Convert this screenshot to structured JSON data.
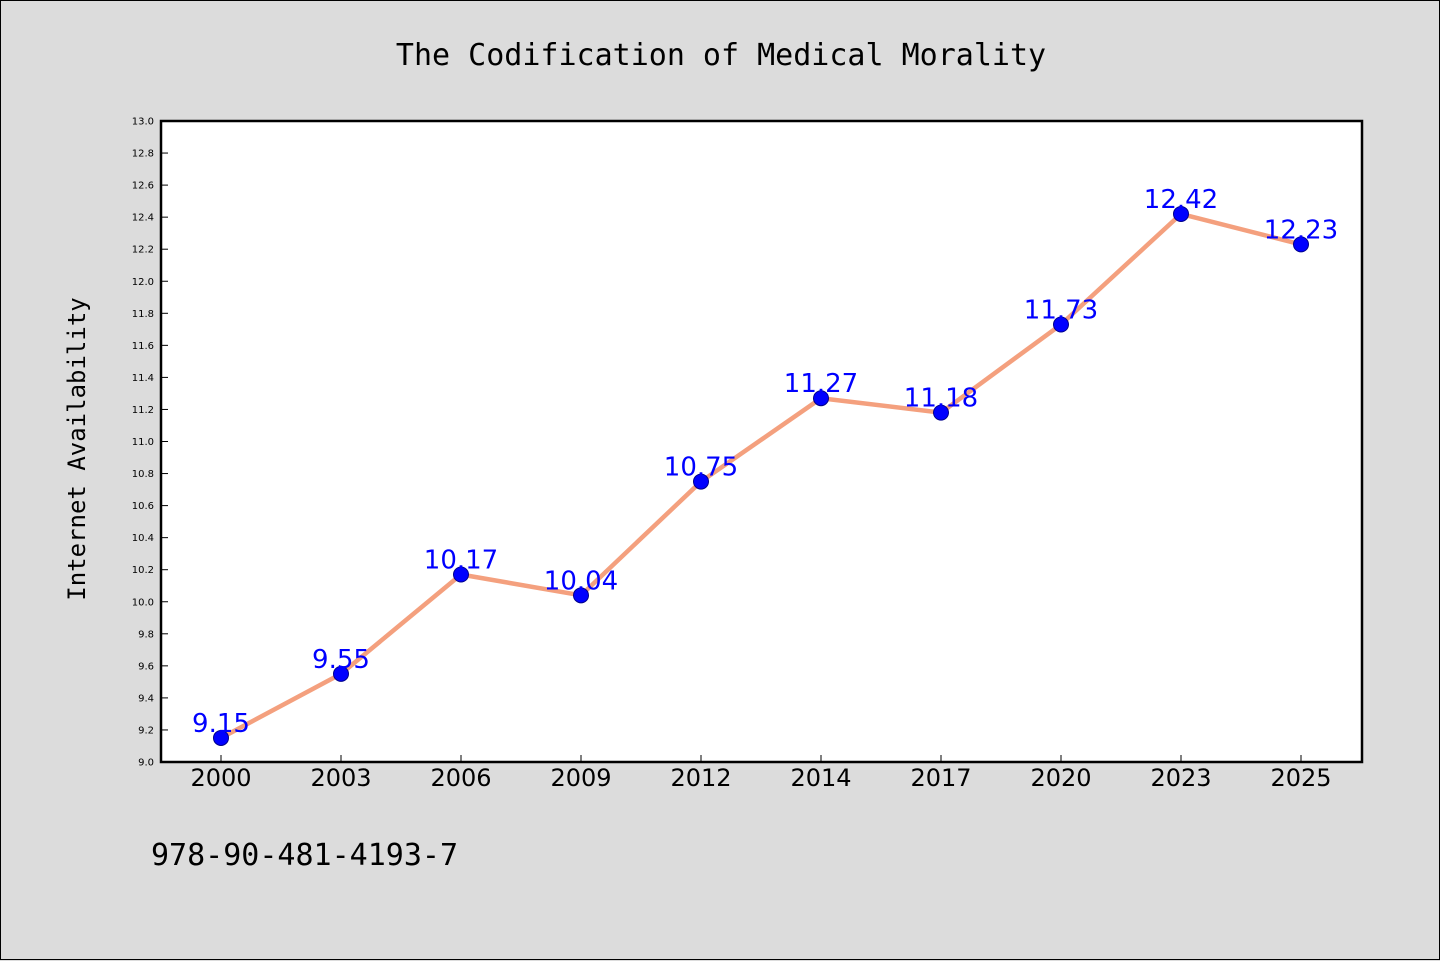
{
  "chart_data": {
    "type": "line",
    "title": "The Codification of Medical Morality",
    "xlabel": "",
    "ylabel": "Internet Availability",
    "categories": [
      "2000",
      "2003",
      "2006",
      "2009",
      "2012",
      "2014",
      "2017",
      "2020",
      "2023",
      "2025"
    ],
    "series": [
      {
        "values": [
          9.15,
          9.55,
          10.17,
          10.04,
          10.75,
          11.27,
          11.18,
          11.73,
          12.42,
          12.23
        ],
        "data_labels": [
          "9.15",
          "9.55",
          "10.17",
          "10.04",
          "10.75",
          "11.27",
          "11.18",
          "11.73",
          "12.42",
          "12.23"
        ]
      }
    ],
    "ylim": [
      9.0,
      13.0
    ],
    "yticks": [
      "9.0",
      "9.2",
      "9.4",
      "9.6",
      "9.8",
      "10.0",
      "10.2",
      "10.4",
      "10.6",
      "10.8",
      "11.0",
      "11.2",
      "11.4",
      "11.6",
      "11.8",
      "12.0",
      "12.2",
      "12.4",
      "12.6",
      "12.8",
      "13.0"
    ],
    "grid": false,
    "legend": "none",
    "colors": {
      "line": "#f4a07e",
      "marker": "#0000ff",
      "label": "#0000ff",
      "background": "#dcdcdc",
      "plot_background": "#ffffff"
    }
  },
  "footer": {
    "isbn": "978-90-481-4193-7"
  }
}
